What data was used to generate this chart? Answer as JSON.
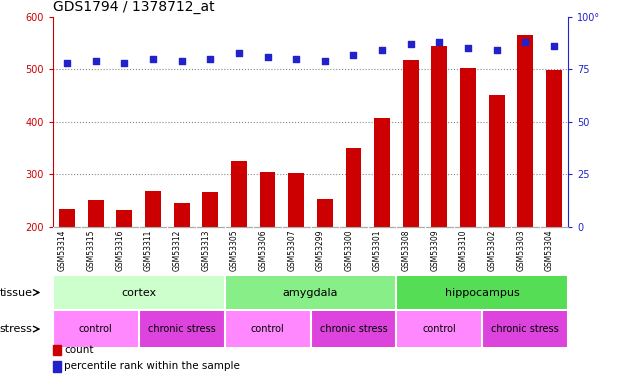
{
  "title": "GDS1794 / 1378712_at",
  "samples": [
    "GSM53314",
    "GSM53315",
    "GSM53316",
    "GSM53311",
    "GSM53312",
    "GSM53313",
    "GSM53305",
    "GSM53306",
    "GSM53307",
    "GSM53299",
    "GSM53300",
    "GSM53301",
    "GSM53308",
    "GSM53309",
    "GSM53310",
    "GSM53302",
    "GSM53303",
    "GSM53304"
  ],
  "counts": [
    235,
    252,
    232,
    268,
    246,
    267,
    325,
    305,
    303,
    254,
    350,
    407,
    517,
    545,
    502,
    452,
    565,
    498
  ],
  "percentiles": [
    78,
    79,
    78,
    80,
    79,
    80,
    83,
    81,
    80,
    79,
    82,
    84,
    87,
    88,
    85,
    84,
    88,
    86
  ],
  "bar_color": "#cc0000",
  "dot_color": "#2222cc",
  "ylim_left": [
    200,
    600
  ],
  "ylim_right": [
    0,
    100
  ],
  "yticks_left": [
    200,
    300,
    400,
    500,
    600
  ],
  "yticks_right": [
    0,
    25,
    50,
    75,
    100
  ],
  "tissue_groups": [
    {
      "label": "cortex",
      "start": 0,
      "end": 6,
      "color": "#ccffcc"
    },
    {
      "label": "amygdala",
      "start": 6,
      "end": 12,
      "color": "#88ee88"
    },
    {
      "label": "hippocampus",
      "start": 12,
      "end": 18,
      "color": "#55dd55"
    }
  ],
  "stress_groups": [
    {
      "label": "control",
      "start": 0,
      "end": 3,
      "color": "#ff88ff"
    },
    {
      "label": "chronic stress",
      "start": 3,
      "end": 6,
      "color": "#dd44dd"
    },
    {
      "label": "control",
      "start": 6,
      "end": 9,
      "color": "#ff88ff"
    },
    {
      "label": "chronic stress",
      "start": 9,
      "end": 12,
      "color": "#dd44dd"
    },
    {
      "label": "control",
      "start": 12,
      "end": 15,
      "color": "#ff88ff"
    },
    {
      "label": "chronic stress",
      "start": 15,
      "end": 18,
      "color": "#dd44dd"
    }
  ],
  "legend_count_label": "count",
  "legend_pct_label": "percentile rank within the sample",
  "tissue_label": "tissue",
  "stress_label": "stress",
  "bar_width": 0.55,
  "dot_size": 18,
  "background_color": "#ffffff",
  "axis_color_left": "#cc0000",
  "axis_color_right": "#2222cc",
  "grid_color": "#888888",
  "tick_label_size": 7,
  "title_fontsize": 10,
  "sample_label_fontsize": 5.5,
  "tissue_fontsize": 8,
  "stress_fontsize": 7,
  "legend_fontsize": 7.5,
  "label_fontsize": 8,
  "xlim": [
    -0.5,
    17.5
  ]
}
